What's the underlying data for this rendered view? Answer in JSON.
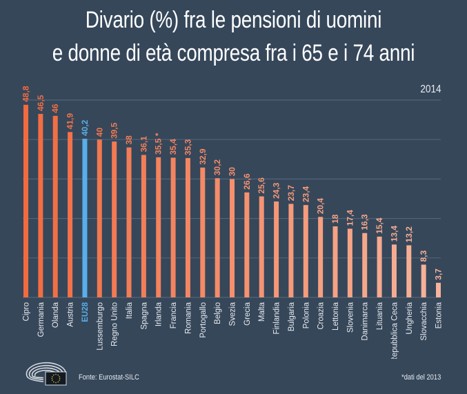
{
  "chart_data": {
    "type": "bar",
    "title": "Divario (%) fra le pensioni di uomini e donne di età compresa fra i 65 e i 74 anni",
    "title_lines": [
      "Divario (%) fra le pensioni di uomini",
      "e donne di età compresa fra i 65 e i 74 anni"
    ],
    "subtitle": "2014",
    "xlabel": "",
    "ylabel": "",
    "ylim": [
      0,
      50
    ],
    "grid": true,
    "gridlines": [
      10,
      20,
      30,
      40,
      50
    ],
    "categories": [
      "Cipro",
      "Germania",
      "Olanda",
      "Austria",
      "EU28",
      "Lussemburgo",
      "Regno Unito",
      "Italia",
      "Spagna",
      "Irlanda",
      "Francia",
      "Romania",
      "Portogallo",
      "Belgio",
      "Svezia",
      "Grecia",
      "Malta",
      "Finlandia",
      "Bulgaria",
      "Polonia",
      "Croazia",
      "Lettonia",
      "Slovenia",
      "Danimarca",
      "Lituania",
      "Repubblica Ceca",
      "Ungheria",
      "Slovacchia",
      "Estonia"
    ],
    "values": [
      48.8,
      46.5,
      46,
      41.9,
      40.2,
      40,
      39.5,
      38,
      36.1,
      35.5,
      35.4,
      35.3,
      32.9,
      30.2,
      30,
      26.6,
      25.6,
      24.3,
      23.7,
      23.4,
      20.4,
      18,
      17.4,
      16.3,
      15.4,
      13.4,
      13.2,
      8.3,
      3.7
    ],
    "value_labels": [
      "48,8",
      "46,5",
      "46",
      "41,9",
      "40,2",
      "40",
      "39,5",
      "38",
      "36,1",
      "35,5 *",
      "35,4",
      "35,3",
      "32,9",
      "30,2",
      "30",
      "26,6",
      "25,6",
      "24,3",
      "23,7",
      "23,4",
      "20,4",
      "18",
      "17,4",
      "16,3",
      "15,4",
      "13,4",
      "13,2",
      "8,3",
      "3,7"
    ],
    "highlight": "EU28",
    "colors": {
      "background": "#36475a",
      "bar_start": "#f26a3f",
      "bar_end": "#f7b49b",
      "highlight": "#5aaee9",
      "grid": "#4f6479"
    }
  },
  "footer": {
    "source": "Fonte: Eurostat-SILC",
    "note": "*dati del 2013"
  },
  "logo": {
    "name": "european-parliament-logo"
  }
}
